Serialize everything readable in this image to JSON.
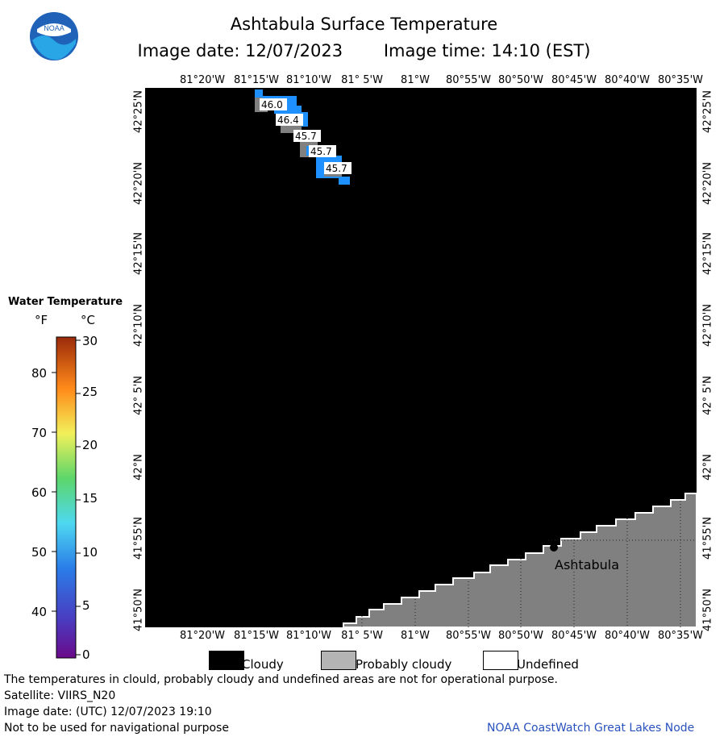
{
  "header": {
    "title": "Ashtabula Surface Temperature",
    "image_date_label": "Image date: 12/07/2023",
    "image_time_label": "Image time: 14:10 (EST)",
    "logo_text": "NOAA"
  },
  "map": {
    "lon_labels": [
      "81°20'W",
      "81°15'W",
      "81°10'W",
      "81° 5'W",
      "81°W",
      "80°55'W",
      "80°50'W",
      "80°45'W",
      "80°40'W",
      "80°35'W"
    ],
    "lat_labels": [
      "42°25'N",
      "42°20'N",
      "42°15'N",
      "42°10'N",
      "42° 5'N",
      "42°N",
      "41°55'N",
      "41°50'N"
    ],
    "temperature_labels": [
      "46.0",
      "46.4",
      "45.7",
      "45.7",
      "45.7"
    ],
    "city_label": "Ashtabula",
    "colors": {
      "cloudy": "#000000",
      "land": "#808080",
      "water_sample": "#1e90ff"
    }
  },
  "legend": {
    "title": "Water Temperature",
    "unit_f": "°F",
    "unit_c": "°C",
    "f_ticks": [
      "80",
      "70",
      "60",
      "50",
      "40"
    ],
    "c_ticks": [
      "30",
      "25",
      "20",
      "15",
      "10",
      "5",
      "0"
    ]
  },
  "key": {
    "cloudy": "Cloudy",
    "probably_cloudy": "Probably cloudy",
    "undefined": "Undefined"
  },
  "footer": {
    "disclaimer": "The temperatures in clould, probably cloudy and undefined areas are not for operational purpose.",
    "satellite": "Satellite: VIIRS_N20",
    "utc_date": "Image date: (UTC) 12/07/2023  19:10",
    "navigation": "Not to be used for navigational purpose",
    "credit": "NOAA CoastWatch Great Lakes Node"
  }
}
